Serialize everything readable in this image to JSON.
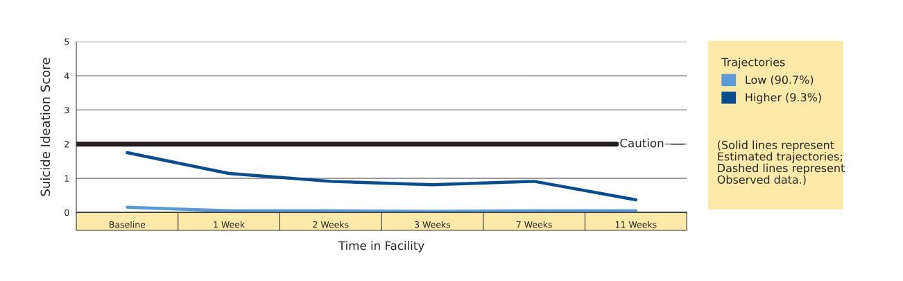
{
  "chart_data": {
    "type": "line",
    "ylabel": "Suicide Ideation Score",
    "xlabel": "Time in Facility",
    "legend_title": "Trajectories",
    "categories": [
      "Baseline",
      "1 Week",
      "2 Weeks",
      "3 Weeks",
      "7 Weeks",
      "11 Weeks"
    ],
    "series": [
      {
        "name": "Low (90.7%)",
        "color": "#5b9bd5",
        "values": [
          0.15,
          0.05,
          0.05,
          0.03,
          0.05,
          0.05
        ]
      },
      {
        "name": "Higher (9.3%)",
        "color": "#0a4d8c",
        "values": [
          1.75,
          1.14,
          0.91,
          0.81,
          0.91,
          0.37
        ]
      }
    ],
    "ylim": [
      0,
      5
    ],
    "yticks": [
      0,
      1,
      2,
      3,
      4,
      5
    ],
    "grid": "y",
    "legend": "right",
    "line_style": "solid",
    "marker": "none",
    "ref_lines": [
      {
        "axis": "y",
        "value": 2,
        "label": "Caution",
        "color": "#231f20"
      }
    ],
    "annotations": [
      "(Solid lines represent\nEstimated trajectories;\nDashed lines represent\nObserved data.)"
    ]
  }
}
